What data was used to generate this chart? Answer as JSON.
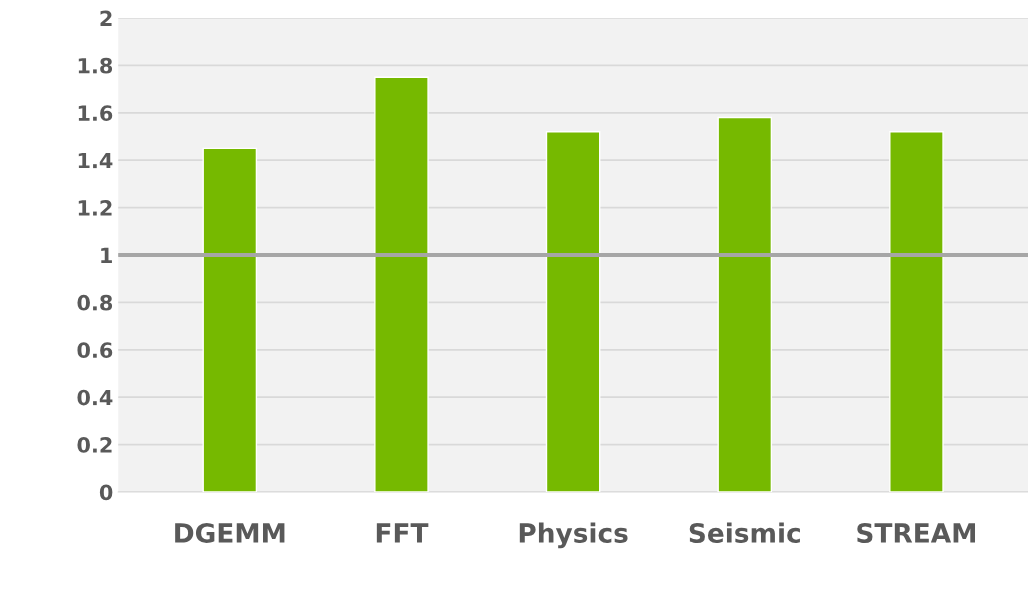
{
  "chart_data": {
    "type": "bar",
    "categories": [
      "DGEMM",
      "FFT",
      "Physics",
      "Seismic",
      "STREAM"
    ],
    "values": [
      1.45,
      1.75,
      1.52,
      1.58,
      1.52
    ],
    "color": "#76b900",
    "ylim": [
      0,
      2
    ],
    "yticks": [
      0,
      0.2,
      0.4,
      0.6,
      0.8,
      1,
      1.2,
      1.4,
      1.6,
      1.8,
      2
    ],
    "grid": "y",
    "ref_lines": [
      {
        "axis": "y",
        "value": 1,
        "color": "#a6a6a6"
      }
    ]
  }
}
